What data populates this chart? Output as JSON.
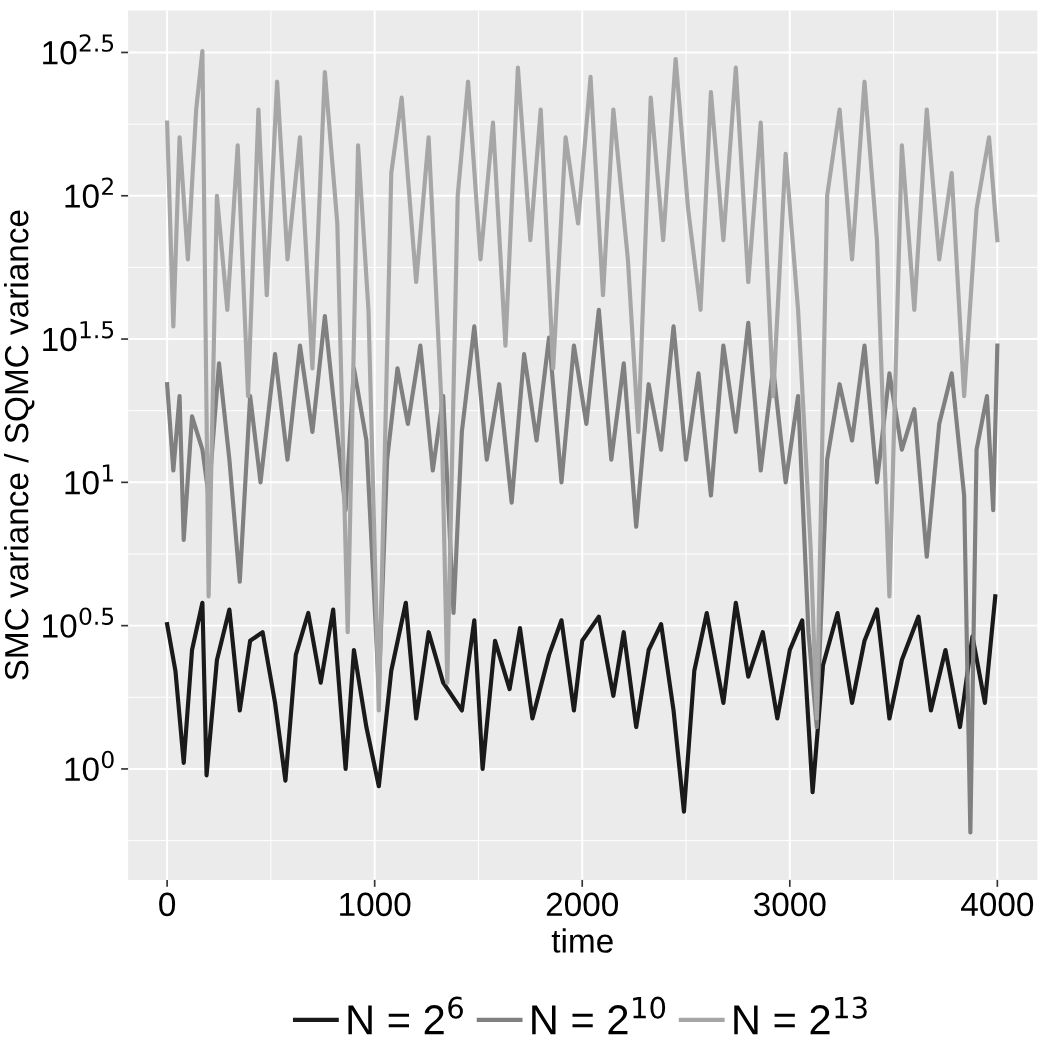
{
  "chart_data": {
    "type": "line",
    "xlabel": "time",
    "ylabel": "SMC variance / SQMC variance",
    "log": "y",
    "grid": true,
    "legend": "bottom",
    "marker": "none",
    "line_style": "solid",
    "xlim": [
      -188,
      4193
    ],
    "xticks": [
      0,
      1000,
      2000,
      3000,
      4000
    ],
    "ylim": [
      0.41,
      443
    ],
    "yticks": [
      {
        "value": 1,
        "label": "10$^{0}$"
      },
      {
        "value": 3.162,
        "label": "10$^{0.5}$"
      },
      {
        "value": 10,
        "label": "10$^{1}$"
      },
      {
        "value": 31.62,
        "label": "10$^{1.5}$"
      },
      {
        "value": 100,
        "label": "10$^{2}$"
      },
      {
        "value": 316.2,
        "label": "10$^{2.5}$"
      }
    ],
    "series": [
      {
        "name": "N = 2$^{6}$",
        "color": "#1a1a1a",
        "x": [
          0,
          40,
          80,
          120,
          170,
          190,
          240,
          300,
          350,
          400,
          460,
          520,
          570,
          620,
          680,
          740,
          800,
          860,
          900,
          960,
          1020,
          1080,
          1150,
          1200,
          1260,
          1330,
          1420,
          1480,
          1520,
          1580,
          1650,
          1700,
          1760,
          1840,
          1900,
          1960,
          2000,
          2080,
          2150,
          2200,
          2260,
          2320,
          2380,
          2440,
          2490,
          2540,
          2600,
          2680,
          2740,
          2800,
          2870,
          2940,
          3000,
          3060,
          3110,
          3160,
          3230,
          3300,
          3360,
          3420,
          3480,
          3540,
          3620,
          3680,
          3750,
          3820,
          3880,
          3940,
          3990
        ],
        "values": [
          3.2,
          2.2,
          1.05,
          2.6,
          3.8,
          0.95,
          2.4,
          3.6,
          1.6,
          2.8,
          3.0,
          1.7,
          0.91,
          2.5,
          3.5,
          2.0,
          3.6,
          1.0,
          2.6,
          1.4,
          0.87,
          2.2,
          3.8,
          1.5,
          3.0,
          2.0,
          1.6,
          3.3,
          1.0,
          2.8,
          1.9,
          3.1,
          1.5,
          2.5,
          3.3,
          1.6,
          2.8,
          3.4,
          1.8,
          3.0,
          1.4,
          2.6,
          3.2,
          1.6,
          0.71,
          2.2,
          3.5,
          1.7,
          3.8,
          2.1,
          3.0,
          1.5,
          2.6,
          3.3,
          0.83,
          2.3,
          3.5,
          1.7,
          2.8,
          3.6,
          1.5,
          2.4,
          3.4,
          1.6,
          2.6,
          1.4,
          2.9,
          1.7,
          4.0
        ]
      },
      {
        "name": "N = 2$^{10}$",
        "color": "#808080",
        "x": [
          0,
          30,
          60,
          80,
          120,
          170,
          200,
          250,
          300,
          350,
          400,
          450,
          520,
          580,
          640,
          700,
          760,
          800,
          860,
          900,
          960,
          1020,
          1060,
          1110,
          1160,
          1220,
          1280,
          1330,
          1380,
          1420,
          1480,
          1540,
          1600,
          1660,
          1720,
          1780,
          1840,
          1900,
          1960,
          2020,
          2080,
          2140,
          2200,
          2260,
          2320,
          2380,
          2440,
          2500,
          2560,
          2620,
          2680,
          2740,
          2800,
          2860,
          2920,
          2980,
          3040,
          3090,
          3130,
          3180,
          3240,
          3300,
          3360,
          3420,
          3480,
          3540,
          3600,
          3660,
          3720,
          3780,
          3840,
          3870,
          3900,
          3950,
          3980,
          4000
        ],
        "values": [
          22,
          11,
          20,
          6.3,
          17,
          13,
          9,
          26,
          12,
          4.5,
          20,
          10,
          28,
          12,
          30,
          15,
          38,
          20,
          8,
          25,
          14,
          1.9,
          12,
          25,
          16,
          30,
          11,
          20,
          3.5,
          15,
          35,
          12,
          22,
          8.5,
          28,
          14,
          32,
          10,
          30,
          16,
          40,
          12,
          26,
          7,
          22,
          13,
          35,
          12,
          24,
          9,
          30,
          15,
          36,
          11,
          25,
          10,
          20,
          3,
          1.4,
          12,
          22,
          14,
          30,
          10,
          24,
          13,
          18,
          5.5,
          16,
          24,
          9,
          0.6,
          13,
          20,
          8,
          30
        ]
      },
      {
        "name": "N = 2$^{13}$",
        "color": "#a6a6a6",
        "x": [
          0,
          30,
          60,
          100,
          140,
          170,
          200,
          240,
          290,
          340,
          390,
          440,
          480,
          530,
          580,
          640,
          700,
          760,
          820,
          870,
          920,
          970,
          1020,
          1080,
          1130,
          1200,
          1260,
          1320,
          1350,
          1400,
          1450,
          1510,
          1570,
          1630,
          1690,
          1750,
          1800,
          1860,
          1920,
          1980,
          2040,
          2100,
          2150,
          2220,
          2270,
          2330,
          2390,
          2450,
          2510,
          2570,
          2620,
          2680,
          2740,
          2800,
          2860,
          2920,
          2980,
          3040,
          3100,
          3130,
          3180,
          3240,
          3300,
          3360,
          3420,
          3480,
          3540,
          3600,
          3660,
          3720,
          3780,
          3840,
          3900,
          3960,
          4000
        ],
        "values": [
          180,
          35,
          160,
          60,
          200,
          320,
          4,
          100,
          40,
          150,
          20,
          200,
          45,
          250,
          60,
          160,
          25,
          270,
          80,
          3,
          150,
          40,
          1.6,
          120,
          220,
          50,
          160,
          20,
          2,
          100,
          250,
          60,
          180,
          30,
          280,
          70,
          200,
          25,
          160,
          80,
          260,
          45,
          200,
          60,
          15,
          220,
          70,
          300,
          90,
          40,
          230,
          70,
          280,
          50,
          180,
          20,
          140,
          40,
          6,
          1.5,
          100,
          200,
          60,
          250,
          70,
          4,
          150,
          40,
          200,
          60,
          120,
          20,
          90,
          160,
          70
        ]
      }
    ]
  }
}
